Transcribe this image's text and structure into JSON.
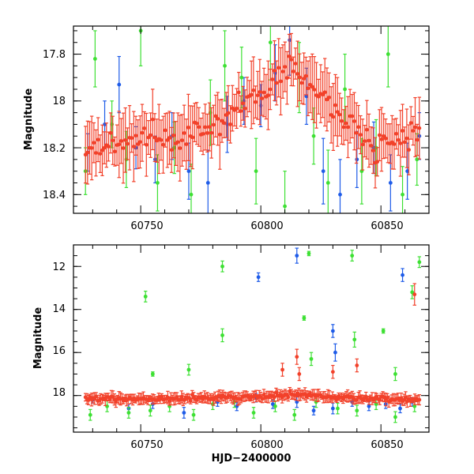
{
  "chart_data": [
    {
      "type": "scatter",
      "title": "",
      "xlabel": "",
      "ylabel": "Magnitude",
      "xlim": [
        60722,
        60870
      ],
      "ylim": [
        18.48,
        17.68
      ],
      "y_inverted": true,
      "grid": false,
      "x_ticks": [
        "60750",
        "60800",
        "60850"
      ],
      "y_ticks": [
        "17.8",
        "18",
        "18.2",
        "18.4"
      ],
      "colors": [
        "#1f5ce8",
        "#3de033",
        "#f2412a"
      ],
      "series": [
        {
          "color": "#1f5ce8",
          "x": [
            60728,
            60735,
            60741,
            60748,
            60756,
            60763,
            60770,
            60778,
            60786,
            60793,
            60800,
            60806,
            60812,
            60819,
            60826,
            60833,
            60840,
            60847,
            60854,
            60861,
            60866
          ],
          "y": [
            18.22,
            18.1,
            17.93,
            18.2,
            18.25,
            18.15,
            18.3,
            18.35,
            18.1,
            18.0,
            18.02,
            17.88,
            17.74,
            17.98,
            18.3,
            18.4,
            18.25,
            18.2,
            18.35,
            18.3,
            18.15
          ],
          "err": [
            0.08,
            0.1,
            0.12,
            0.09,
            0.1,
            0.1,
            0.12,
            0.14,
            0.12,
            0.1,
            0.09,
            0.12,
            0.15,
            0.12,
            0.14,
            0.15,
            0.12,
            0.11,
            0.12,
            0.12,
            0.1
          ]
        },
        {
          "color": "#3de033",
          "x": [
            60727,
            60731,
            60738,
            60744,
            60750,
            60757,
            60764,
            60771,
            60779,
            60785,
            60792,
            60798,
            60804,
            60810,
            60816,
            60822,
            60828,
            60835,
            60842,
            60848,
            60853,
            60859,
            60865
          ],
          "y": [
            18.3,
            17.82,
            18.1,
            18.25,
            17.7,
            18.35,
            18.2,
            18.4,
            18.05,
            17.85,
            17.9,
            18.3,
            17.75,
            18.45,
            17.9,
            18.15,
            18.35,
            17.95,
            18.3,
            18.2,
            17.8,
            18.4,
            18.25
          ],
          "err": [
            0.1,
            0.12,
            0.1,
            0.12,
            0.15,
            0.12,
            0.11,
            0.13,
            0.14,
            0.15,
            0.13,
            0.14,
            0.16,
            0.15,
            0.15,
            0.12,
            0.14,
            0.15,
            0.14,
            0.12,
            0.14,
            0.12,
            0.11
          ]
        },
        {
          "color": "#f2412a",
          "x_start": 60727,
          "x_end": 60866,
          "count": 160,
          "trend_x": [
            60727,
            60740,
            60752,
            60763,
            60775,
            60788,
            60800,
            60812,
            60825,
            60837,
            60848,
            60858,
            60866
          ],
          "trend_y": [
            18.2,
            18.18,
            18.15,
            18.17,
            18.12,
            18.05,
            17.97,
            17.85,
            17.98,
            18.08,
            18.2,
            18.17,
            18.15
          ],
          "scatter": 0.06,
          "err": 0.1
        }
      ]
    },
    {
      "type": "scatter",
      "title": "",
      "xlabel": "HJD−2400000",
      "ylabel": "Magnitude",
      "xlim": [
        60722,
        60870
      ],
      "ylim": [
        19.7,
        11.0
      ],
      "y_inverted": true,
      "grid": false,
      "x_ticks": [
        "60750",
        "60800",
        "60850"
      ],
      "y_ticks": [
        "12",
        "14",
        "16",
        "18"
      ],
      "colors": [
        "#1f5ce8",
        "#3de033",
        "#f2412a"
      ],
      "series": [
        {
          "color": "#1f5ce8",
          "x": [
            60730,
            60745,
            60755,
            60768,
            60782,
            60790,
            60798,
            60805,
            60815,
            60822,
            60830,
            60838,
            60845,
            60852,
            60858,
            60863,
            60799,
            60815,
            60830,
            60831,
            60859
          ],
          "y": [
            18.2,
            18.6,
            18.4,
            18.8,
            18.3,
            18.5,
            18.1,
            18.4,
            18.3,
            18.7,
            18.6,
            18.3,
            18.5,
            18.4,
            18.6,
            18.3,
            12.5,
            11.5,
            15.0,
            16.0,
            12.4
          ],
          "err": [
            0.15,
            0.2,
            0.2,
            0.25,
            0.2,
            0.2,
            0.2,
            0.2,
            0.25,
            0.2,
            0.25,
            0.2,
            0.2,
            0.2,
            0.2,
            0.2,
            0.2,
            0.35,
            0.3,
            0.4,
            0.3
          ]
        },
        {
          "color": "#3de033",
          "x": [
            60729,
            60736,
            60745,
            60754,
            60762,
            60772,
            60780,
            60789,
            60797,
            60806,
            60814,
            60823,
            60832,
            60840,
            60848,
            60856,
            60864,
            60752,
            60755,
            60770,
            60784,
            60784,
            60818,
            60821,
            60838,
            60839,
            60851,
            60856,
            60863,
            60866,
            60820
          ],
          "y": [
            18.9,
            18.5,
            18.8,
            18.7,
            18.5,
            18.9,
            18.4,
            18.3,
            18.8,
            18.5,
            18.9,
            18.3,
            18.6,
            18.7,
            18.4,
            19.0,
            18.5,
            13.4,
            17.0,
            16.8,
            12.0,
            15.2,
            14.4,
            16.3,
            11.5,
            15.4,
            15.0,
            17.0,
            13.2,
            11.8,
            11.4
          ],
          "err": [
            0.25,
            0.25,
            0.25,
            0.25,
            0.25,
            0.25,
            0.25,
            0.25,
            0.25,
            0.25,
            0.25,
            0.25,
            0.25,
            0.25,
            0.25,
            0.25,
            0.25,
            0.25,
            0.1,
            0.25,
            0.25,
            0.3,
            0.1,
            0.3,
            0.25,
            0.35,
            0.1,
            0.3,
            0.3,
            0.25,
            0.1
          ]
        },
        {
          "color": "#f2412a",
          "x_start": 60727,
          "x_end": 60866,
          "count": 220,
          "trend_x": [
            60727,
            60760,
            60790,
            60812,
            60835,
            60866
          ],
          "trend_y": [
            18.15,
            18.15,
            18.1,
            17.95,
            18.1,
            18.2
          ],
          "scatter": 0.12,
          "err": 0.2,
          "outliers_x": [
            60809,
            60815,
            60816,
            60830,
            60840,
            60864
          ],
          "outliers_y": [
            16.8,
            16.2,
            17.0,
            16.9,
            16.6,
            13.3
          ],
          "outliers_err": [
            0.3,
            0.35,
            0.3,
            0.3,
            0.3,
            0.5
          ]
        }
      ]
    }
  ]
}
